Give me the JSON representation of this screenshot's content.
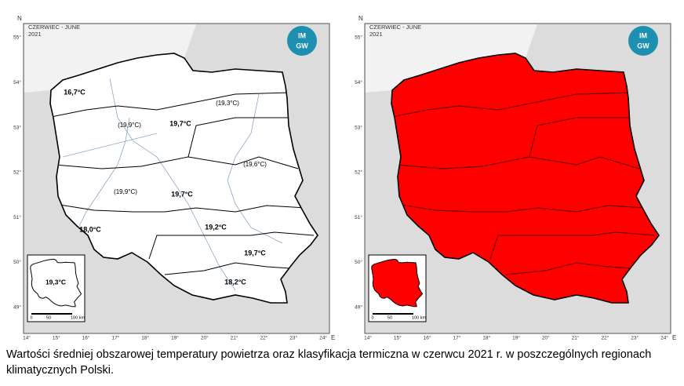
{
  "left_map": {
    "header": {
      "title": "CZERWIEC - JUNE",
      "year": "2021"
    },
    "logo": [
      "IM",
      "GW"
    ],
    "north": "N",
    "east": "E",
    "lat_labels": [
      "55°",
      "54°",
      "53°",
      "52°",
      "51°",
      "50°",
      "49°"
    ],
    "lon_labels": [
      "14°",
      "15°",
      "16°",
      "17°",
      "18°",
      "19°",
      "20°",
      "21°",
      "22°",
      "23°",
      "24°"
    ],
    "regions": [
      "16,7°C",
      "(19,3°C)",
      "(19,9°C)",
      "19,7°C",
      "(19,6°C)",
      "(19,9°C)",
      "19,7°C",
      "18,0°C",
      "19,2°C",
      "19,7°C",
      "18,2°C"
    ],
    "inset_label": "19,3°C",
    "scale": [
      "0",
      "50",
      "100 km"
    ]
  },
  "right_map": {
    "header": {
      "title": "CZERWIEC - JUNE",
      "year": "2021"
    },
    "logo": [
      "IM",
      "GW"
    ],
    "north": "N",
    "east": "E",
    "lat_labels": [
      "55°",
      "54°",
      "53°",
      "52°",
      "51°",
      "50°",
      "49°"
    ],
    "lon_labels": [
      "14°",
      "15°",
      "16°",
      "17°",
      "18°",
      "19°",
      "20°",
      "21°",
      "22°",
      "23°",
      "24°"
    ],
    "scale": [
      "0",
      "50",
      "100 km"
    ]
  },
  "caption": "Wartości średniej obszarowej temperatury powietrza oraz klasyfikacja termiczna w czerwcu 2021 r. w poszczególnych regionach klimatycznych Polski."
}
